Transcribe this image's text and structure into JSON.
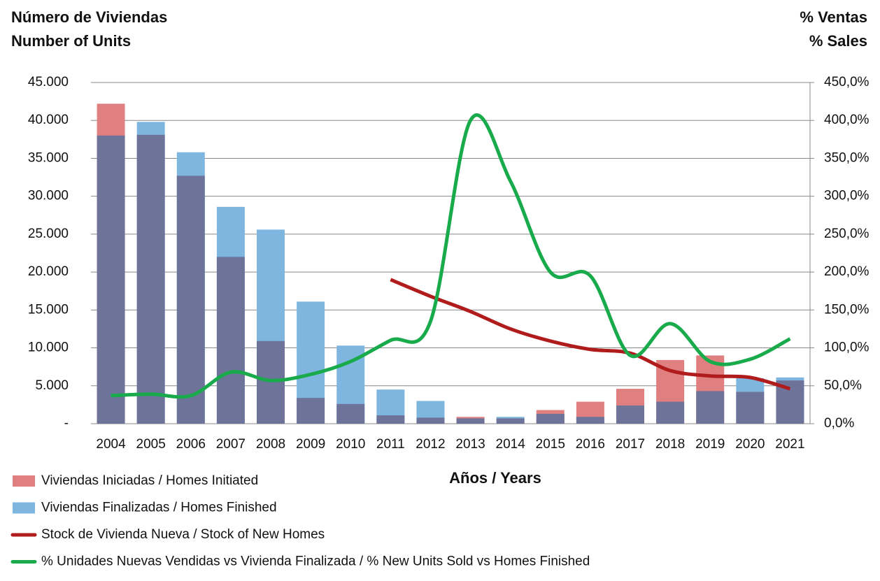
{
  "chart_data": {
    "type": "bar_line",
    "title_left": [
      "Número de Viviendas",
      "Number of Units"
    ],
    "title_right": [
      "% Ventas",
      "% Sales"
    ],
    "xlabel": "Años / Years",
    "categories": [
      "2004",
      "2005",
      "2006",
      "2007",
      "2008",
      "2009",
      "2010",
      "2011",
      "2012",
      "2013",
      "2014",
      "2015",
      "2016",
      "2017",
      "2018",
      "2019",
      "2020",
      "2021"
    ],
    "overlap_color": "#6d7399",
    "series": [
      {
        "name": "Viviendas Iniciadas / Homes Initiated",
        "color": "#e07f80",
        "kind": "bar",
        "values": [
          42200,
          38100,
          32700,
          22000,
          10900,
          3400,
          2600,
          1100,
          800,
          900,
          700,
          1800,
          2900,
          4600,
          8400,
          9000,
          4200,
          5700
        ]
      },
      {
        "name": "Viviendas Finalizadas / Homes Finished",
        "color": "#7fb6e0",
        "kind": "bar",
        "values": [
          38000,
          39800,
          35800,
          28600,
          25600,
          16100,
          10300,
          4500,
          3000,
          700,
          900,
          1300,
          900,
          2400,
          2900,
          4300,
          6000,
          6100
        ]
      },
      {
        "name": "Stock de Vivienda Nueva / Stock of New Homes",
        "color": "#b01c1c",
        "kind": "line",
        "values": [
          null,
          null,
          null,
          null,
          null,
          null,
          null,
          19000,
          16800,
          14800,
          12500,
          10900,
          9800,
          9300,
          7000,
          6300,
          6100,
          4600
        ]
      },
      {
        "name": "% Unidades Nuevas Vendidas vs Vivienda Finalizada / % New Units Sold vs Homes Finished",
        "color": "#19ab4b",
        "kind": "line",
        "axis": "y2",
        "values": [
          37,
          39,
          37,
          68,
          57,
          65,
          82,
          110,
          135,
          400,
          320,
          200,
          195,
          90,
          132,
          82,
          85,
          112
        ]
      }
    ],
    "ylim": [
      0,
      45000
    ],
    "yticks": [
      {
        "value": 0,
        "label": "-"
      },
      {
        "value": 5000,
        "label": "5.000"
      },
      {
        "value": 10000,
        "label": "10.000"
      },
      {
        "value": 15000,
        "label": "15.000"
      },
      {
        "value": 20000,
        "label": "20.000"
      },
      {
        "value": 25000,
        "label": "25.000"
      },
      {
        "value": 30000,
        "label": "30.000"
      },
      {
        "value": 35000,
        "label": "35.000"
      },
      {
        "value": 40000,
        "label": "40.000"
      },
      {
        "value": 45000,
        "label": "45.000"
      }
    ],
    "y2lim": [
      0,
      450
    ],
    "y2ticks": [
      {
        "value": 0,
        "label": "0,0%"
      },
      {
        "value": 50,
        "label": "50,0%"
      },
      {
        "value": 100,
        "label": "100,0%"
      },
      {
        "value": 150,
        "label": "150,0%"
      },
      {
        "value": 200,
        "label": "200,0%"
      },
      {
        "value": 250,
        "label": "250,0%"
      },
      {
        "value": 300,
        "label": "300,0%"
      },
      {
        "value": 350,
        "label": "350,0%"
      },
      {
        "value": 400,
        "label": "400,0%"
      },
      {
        "value": 450,
        "label": "450,0%"
      }
    ],
    "grid": true
  }
}
